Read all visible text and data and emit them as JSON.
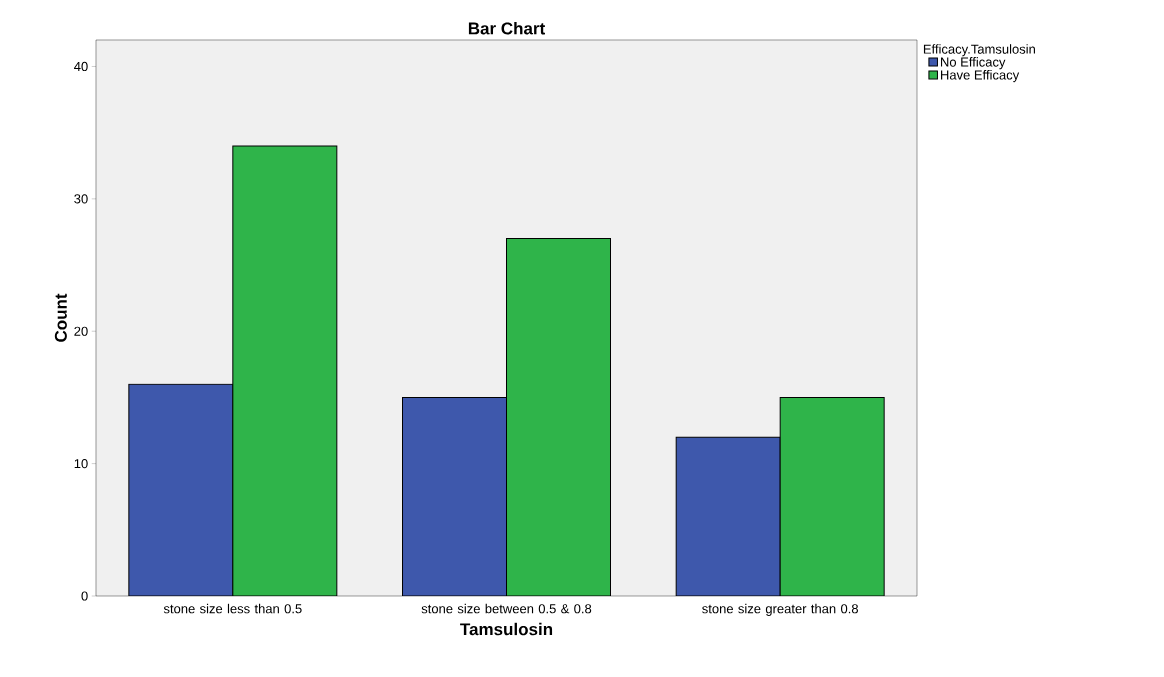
{
  "chart_data": {
    "type": "bar",
    "title": "Bar Chart",
    "xlabel": "Tamsulosin",
    "ylabel": "Count",
    "legend_title": "Efficacy.Tamsulosin",
    "categories": [
      "stone size less than 0.5",
      "stone size between 0.5 & 0.8",
      "stone size greater than 0.8"
    ],
    "series": [
      {
        "name": "No Efficacy",
        "color": "#3e58ac",
        "values": [
          16,
          15,
          12
        ]
      },
      {
        "name": "Have Efficacy",
        "color": "#2fb44a",
        "values": [
          34,
          27,
          15
        ]
      }
    ],
    "ylim": [
      0,
      42
    ],
    "yticks": [
      0,
      10,
      20,
      30,
      40
    ],
    "grid": false,
    "legend": "top right"
  }
}
